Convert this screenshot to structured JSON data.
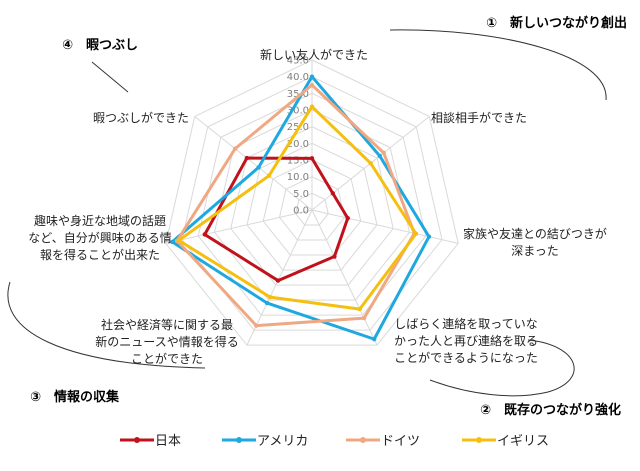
{
  "chart_data": {
    "type": "radar",
    "axes": [
      "新しい友人ができた",
      "相談相手ができた",
      "家族や友達との結びつきが深まった",
      "しばらく連絡を取っていなかった人と再び連絡を取ることができるようになった",
      "社会や経済等に関する最新のニュースや情報を得ることができた",
      "趣味や身近な地域の話題など、自分が興味のある情報を得ることが出来た",
      "暇つぶしができた"
    ],
    "axis_label_lines": [
      [
        "新しい友人ができた"
      ],
      [
        "相談相手ができた"
      ],
      [
        "家族や友達との結びつきが",
        "深まった"
      ],
      [
        "しばらく連絡を取っていな",
        "かった人と再び連絡を取る",
        "ことができるようになった"
      ],
      [
        "社会や経済等に関する最",
        "新のニュースや情報を得る",
        "ことができた"
      ],
      [
        "趣味や身近な地域の話題",
        "など、自分が興味のある情",
        "報を得ることが出来た"
      ],
      [
        "暇つぶしができた"
      ]
    ],
    "ylim": [
      0,
      45
    ],
    "ticks": [
      "0.0",
      "5.0",
      "10.0",
      "15.0",
      "20.0",
      "25.0",
      "30.0",
      "35.0",
      "40.0",
      "45.0"
    ],
    "series": [
      {
        "name": "日本",
        "color": "#c0121b",
        "values": [
          15.5,
          8.0,
          11.0,
          15.5,
          23.5,
          33.0,
          25.0
        ]
      },
      {
        "name": "アメリカ",
        "color": "#1ea8e0",
        "values": [
          40.0,
          26.0,
          36.0,
          43.0,
          31.0,
          43.0,
          20.5
        ]
      },
      {
        "name": "ドイツ",
        "color": "#f0a882",
        "values": [
          37.5,
          27.5,
          31.5,
          36.0,
          38.5,
          41.5,
          29.5
        ]
      },
      {
        "name": "イギリス",
        "color": "#f5bf0f",
        "values": [
          31.0,
          22.5,
          32.0,
          33.0,
          29.0,
          41.0,
          16.5
        ]
      }
    ],
    "annotations": [
      {
        "text": "①　新しいつながり創出",
        "position": "top-right"
      },
      {
        "text": "②　既存のつながり強化",
        "position": "bottom-right"
      },
      {
        "text": "③　情報の収集",
        "position": "bottom-left"
      },
      {
        "text": "④　暇つぶし",
        "position": "top-left"
      }
    ],
    "legend_position": "bottom",
    "grid": true
  }
}
